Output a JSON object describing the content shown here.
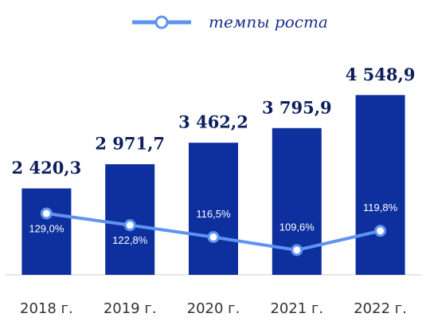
{
  "chart_data": {
    "type": "bar",
    "categories": [
      "2018 г.",
      "2019 г.",
      "2020 г.",
      "2021 г.",
      "2022 г."
    ],
    "series": [
      {
        "name": null,
        "type": "bar",
        "color": "#0e2f9e",
        "values": [
          2420.3,
          2971.7,
          3462.2,
          3795.9,
          4548.9
        ],
        "value_labels": [
          "2 420,3",
          "2 971,7",
          "3 462,2",
          "3 795,9",
          "4 548,9"
        ]
      },
      {
        "name": "темпы роста",
        "type": "line",
        "axis": "y2",
        "color": "#5f93f2",
        "values": [
          129.0,
          122.8,
          116.5,
          109.6,
          119.8
        ],
        "value_labels": [
          "129,0%",
          "122,8%",
          "116,5%",
          "109,6%",
          "119,8%"
        ]
      }
    ],
    "ylim": [
      450,
      5100
    ],
    "y2lim": [
      96.5,
      204.5
    ],
    "legend": "top"
  }
}
